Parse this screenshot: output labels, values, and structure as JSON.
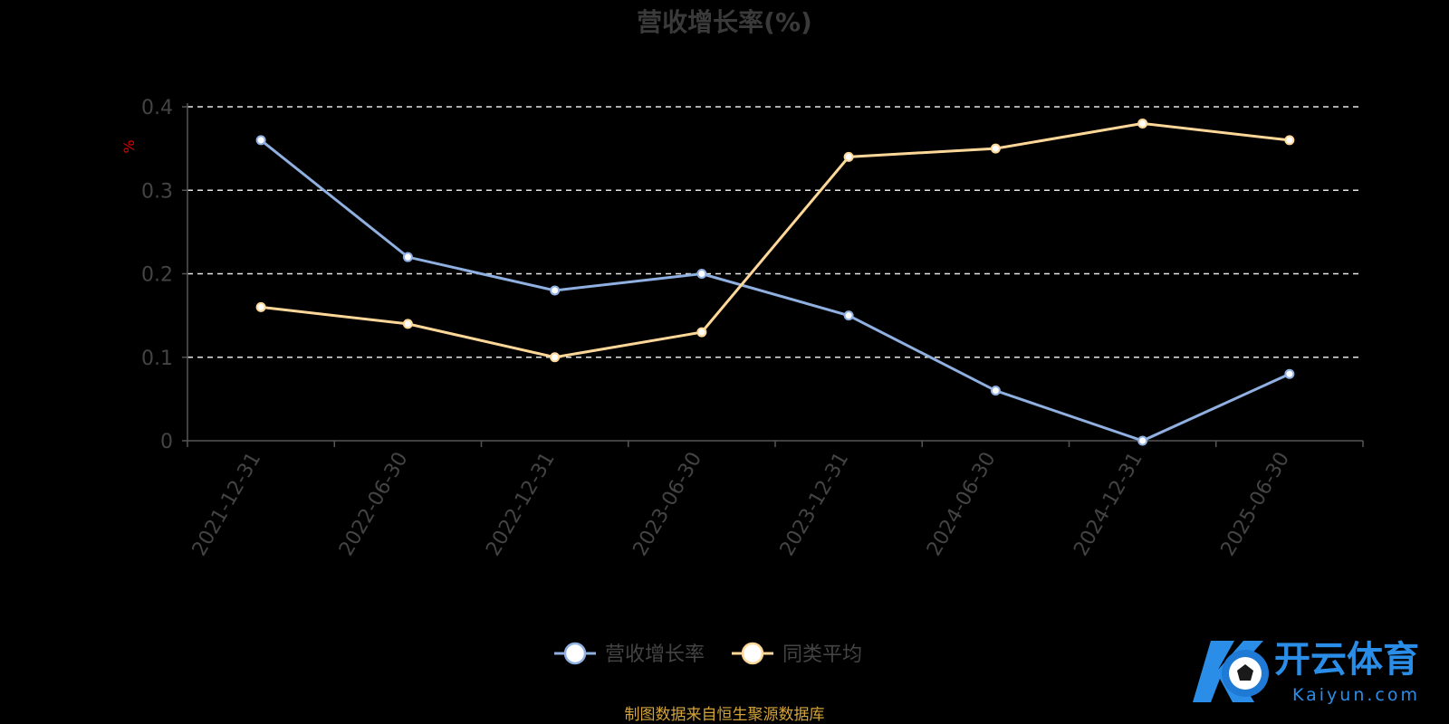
{
  "chart_data": {
    "type": "line",
    "title": "营收增长率(%)",
    "unit_label": "%",
    "categories": [
      "2021-12-31",
      "2022-06-30",
      "2022-12-31",
      "2023-06-30",
      "2023-12-31",
      "2024-06-30",
      "2024-12-31",
      "2025-06-30"
    ],
    "series": [
      {
        "name": "营收增长率",
        "color": "#8fb0e0",
        "values": [
          0.36,
          0.22,
          0.18,
          0.2,
          0.15,
          0.06,
          0.0,
          0.08
        ]
      },
      {
        "name": "同类平均",
        "color": "#ffd899",
        "values": [
          0.16,
          0.14,
          0.1,
          0.13,
          0.34,
          0.35,
          0.38,
          0.36
        ]
      }
    ],
    "ylim": [
      0,
      0.4
    ],
    "yticks": [
      "0",
      "0.1",
      "0.2",
      "0.3",
      "0.4"
    ],
    "grid": true,
    "legend_position": "bottom-center"
  },
  "source_note": "制图数据来自恒生聚源数据库",
  "logo": {
    "cn": "开云体育",
    "en": "Kaiyun.com",
    "color": "#2a8ee8"
  }
}
